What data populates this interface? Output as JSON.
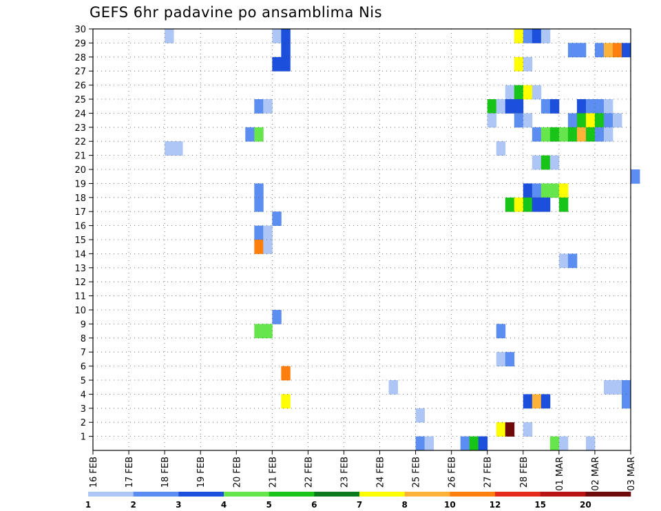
{
  "chart_data": {
    "type": "heatmap",
    "title": "GEFS 6hr padavine po ansamblima Nis",
    "xlabel": "",
    "ylabel": "",
    "x_ticks": [
      "16 FEB",
      "17 FEB",
      "18 FEB",
      "19 FEB",
      "20 FEB",
      "21 FEB",
      "22 FEB",
      "23 FEB",
      "24 FEB",
      "25 FEB",
      "26 FEB",
      "27 FEB",
      "28 FEB",
      "01 MAR",
      "02 MAR",
      "03 MAR"
    ],
    "y_ticks": [
      "1",
      "2",
      "3",
      "4",
      "5",
      "6",
      "7",
      "8",
      "9",
      "10",
      "11",
      "12",
      "13",
      "14",
      "15",
      "16",
      "17",
      "18",
      "19",
      "20",
      "21",
      "22",
      "23",
      "24",
      "25",
      "26",
      "27",
      "28",
      "29",
      "30"
    ],
    "x_unit": "6-hour step (0 = 16 FEB 00Z)",
    "y_unit": "ensemble member",
    "xlim": [
      0,
      60
    ],
    "ylim": [
      0,
      30
    ],
    "grid": true,
    "legend": {
      "placement": "bottom",
      "labels": [
        "1",
        "2",
        "3",
        "4",
        "5",
        "6",
        "7",
        "8",
        "10",
        "12",
        "15",
        "20"
      ],
      "colors": [
        "#aec6f5",
        "#5b8ef0",
        "#1b4fdc",
        "#66e64c",
        "#19c419",
        "#0a7a1a",
        "#ffff00",
        "#ffb23a",
        "#ff7f0e",
        "#e62a19",
        "#b81414",
        "#6e0a0a"
      ]
    },
    "cells": [
      [
        8,
        29,
        1
      ],
      [
        20,
        29,
        1
      ],
      [
        21,
        29,
        3
      ],
      [
        47,
        29,
        7
      ],
      [
        48,
        29,
        2
      ],
      [
        49,
        29,
        3
      ],
      [
        50,
        29,
        1
      ],
      [
        21,
        28,
        3
      ],
      [
        53,
        28,
        2
      ],
      [
        54,
        28,
        2
      ],
      [
        56,
        28,
        2
      ],
      [
        57,
        28,
        8
      ],
      [
        58,
        28,
        10
      ],
      [
        59,
        28,
        3
      ],
      [
        20,
        27,
        3
      ],
      [
        21,
        27,
        3
      ],
      [
        47,
        27,
        7
      ],
      [
        48,
        27,
        1
      ],
      [
        46,
        25,
        1
      ],
      [
        47,
        25,
        5
      ],
      [
        48,
        25,
        7
      ],
      [
        49,
        25,
        1
      ],
      [
        18,
        24,
        2
      ],
      [
        19,
        24,
        1
      ],
      [
        44,
        24,
        5
      ],
      [
        45,
        24,
        1
      ],
      [
        46,
        24,
        3
      ],
      [
        47,
        24,
        3
      ],
      [
        50,
        24,
        2
      ],
      [
        51,
        24,
        3
      ],
      [
        54,
        24,
        3
      ],
      [
        55,
        24,
        2
      ],
      [
        56,
        24,
        2
      ],
      [
        57,
        24,
        1
      ],
      [
        44,
        23,
        1
      ],
      [
        47,
        23,
        2
      ],
      [
        48,
        23,
        1
      ],
      [
        53,
        23,
        2
      ],
      [
        54,
        23,
        5
      ],
      [
        55,
        23,
        7
      ],
      [
        56,
        23,
        5
      ],
      [
        57,
        23,
        2
      ],
      [
        58,
        23,
        1
      ],
      [
        17,
        22,
        2
      ],
      [
        18,
        22,
        4
      ],
      [
        49,
        22,
        2
      ],
      [
        50,
        22,
        4
      ],
      [
        51,
        22,
        5
      ],
      [
        52,
        22,
        4
      ],
      [
        53,
        22,
        5
      ],
      [
        54,
        22,
        8
      ],
      [
        55,
        22,
        5
      ],
      [
        56,
        22,
        2
      ],
      [
        57,
        22,
        1
      ],
      [
        8,
        21,
        1
      ],
      [
        9,
        21,
        1
      ],
      [
        45,
        21,
        1
      ],
      [
        49,
        20,
        1
      ],
      [
        50,
        20,
        5
      ],
      [
        51,
        20,
        1
      ],
      [
        60,
        19,
        2
      ],
      [
        18,
        18,
        2
      ],
      [
        48,
        18,
        3
      ],
      [
        49,
        18,
        2
      ],
      [
        50,
        18,
        4
      ],
      [
        51,
        18,
        4
      ],
      [
        52,
        18,
        7
      ],
      [
        18,
        17,
        2
      ],
      [
        46,
        17,
        5
      ],
      [
        47,
        17,
        7
      ],
      [
        48,
        17,
        5
      ],
      [
        49,
        17,
        3
      ],
      [
        50,
        17,
        3
      ],
      [
        52,
        17,
        5
      ],
      [
        20,
        16,
        2
      ],
      [
        18,
        15,
        2
      ],
      [
        19,
        15,
        1
      ],
      [
        18,
        14,
        10
      ],
      [
        19,
        14,
        1
      ],
      [
        52,
        13,
        1
      ],
      [
        53,
        13,
        2
      ],
      [
        20,
        9,
        2
      ],
      [
        18,
        8,
        4
      ],
      [
        19,
        8,
        4
      ],
      [
        45,
        8,
        2
      ],
      [
        45,
        6,
        1
      ],
      [
        46,
        6,
        2
      ],
      [
        21,
        5,
        10
      ],
      [
        33,
        4,
        1
      ],
      [
        57,
        4,
        1
      ],
      [
        58,
        4,
        1
      ],
      [
        59,
        4,
        2
      ],
      [
        21,
        3,
        7
      ],
      [
        48,
        3,
        3
      ],
      [
        49,
        3,
        8
      ],
      [
        50,
        3,
        3
      ],
      [
        59,
        3,
        2
      ],
      [
        36,
        2,
        1
      ],
      [
        45,
        1,
        7
      ],
      [
        46,
        1,
        20
      ],
      [
        48,
        1,
        1
      ],
      [
        36,
        0,
        2
      ],
      [
        37,
        0,
        1
      ],
      [
        41,
        0,
        2
      ],
      [
        42,
        0,
        5
      ],
      [
        43,
        0,
        3
      ],
      [
        51,
        0,
        4
      ],
      [
        52,
        0,
        1
      ],
      [
        55,
        0,
        1
      ]
    ]
  }
}
